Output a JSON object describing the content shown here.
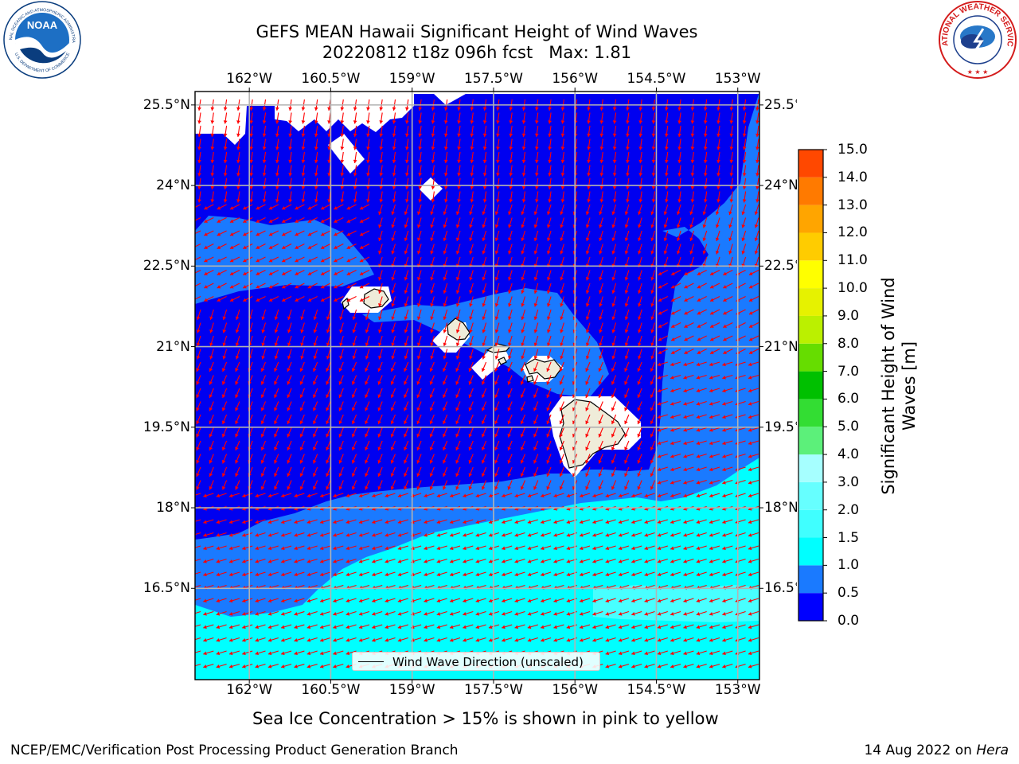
{
  "header": {
    "title": "GEFS MEAN Hawaii Significant Height of Wind Waves",
    "subtitle": "20220812 t18z 096h fcst   Max: 1.81"
  },
  "map": {
    "lon_labels": [
      "162°W",
      "160.5°W",
      "159°W",
      "157.5°W",
      "156°W",
      "154.5°W",
      "153°W"
    ],
    "lat_labels": [
      "25.5°N",
      "24°N",
      "22.5°N",
      "21°N",
      "19.5°N",
      "18°N",
      "16.5°N"
    ],
    "lon_range": [
      -163,
      -152.6
    ],
    "lat_range": [
      14.8,
      25.75
    ],
    "ocean_colors": {
      "deep": "#0000f0",
      "mid": "#1a7aff",
      "light": "#00ffff",
      "land": "#efecd9",
      "arrow": "#ff0000",
      "grid": "#b3b3b3"
    },
    "legend_label": "Wind Wave Direction (unscaled)"
  },
  "colorbar": {
    "title_line1": "Significant Height of Wind",
    "title_line2": "Waves [m]",
    "ticks": [
      "0.0",
      "0.5",
      "1.0",
      "1.5",
      "2.0",
      "3.0",
      "4.0",
      "5.0",
      "6.0",
      "7.0",
      "8.0",
      "9.0",
      "10.0",
      "11.0",
      "12.0",
      "13.0",
      "14.0",
      "15.0"
    ],
    "colors": [
      "#0000ff",
      "#1a7aff",
      "#00ffff",
      "#40ffff",
      "#66ffff",
      "#a6ffff",
      "#5cf07a",
      "#33dd33",
      "#00c000",
      "#66dd00",
      "#bbf000",
      "#e6f200",
      "#ffff00",
      "#ffcc00",
      "#ffa500",
      "#ff7a00",
      "#ff4800",
      "#ff0000"
    ]
  },
  "note": "Sea Ice Concentration > 15% is shown in pink to yellow",
  "footer": {
    "left": "NCEP/EMC/Verification Post Processing Product Generation Branch",
    "right_date": "14 Aug 2022 on ",
    "right_host": "Hera"
  },
  "logos": {
    "noaa_text": "NOAA",
    "noaa_ring_top": "NATIONAL OCEANIC AND ATMOSPHERIC ADMINISTRATION",
    "noaa_ring_bottom": "U.S. DEPARTMENT OF COMMERCE",
    "nws_ring_text": "NATIONAL WEATHER SERVICE"
  }
}
